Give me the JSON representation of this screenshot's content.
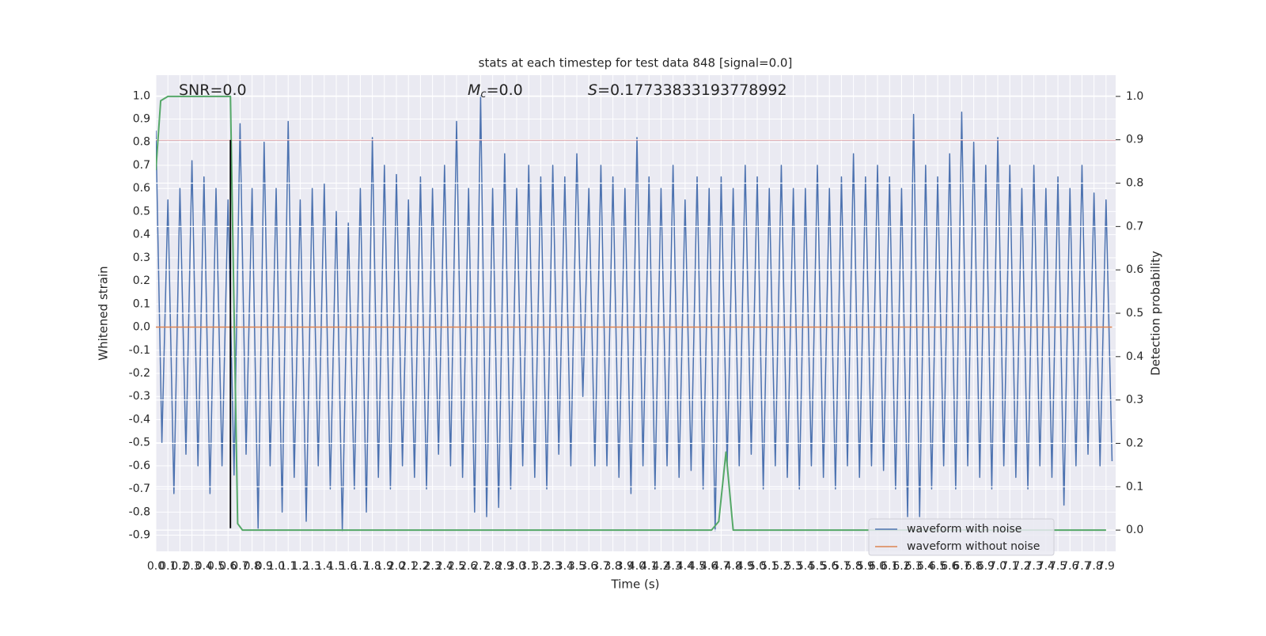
{
  "chart_data": {
    "type": "line",
    "title": "stats at each timestep for test data 848 [signal=0.0]",
    "xlabel": "Time (s)",
    "ylabel": "Whitened strain",
    "y2label": "Detection probability",
    "annotations": [
      {
        "text": "SNR=0.0"
      },
      {
        "symbol": "M",
        "subscript": "c",
        "text": "=0.0"
      },
      {
        "symbol": "S",
        "text": "=0.17733833193778992"
      }
    ],
    "xlim": [
      0,
      7.98
    ],
    "ylim": [
      -0.97,
      1.09
    ],
    "y2lim": [
      -0.049,
      1.049
    ],
    "xticks": [
      {
        "value": 0,
        "label": "0.0"
      },
      0.1,
      0.2,
      0.3,
      0.4,
      0.5,
      0.6,
      0.7,
      0.8,
      0.9,
      {
        "value": 1,
        "label": "1.0"
      },
      1.1,
      1.2,
      1.3,
      1.4,
      1.5,
      1.6,
      1.7,
      1.8,
      1.9,
      {
        "value": 2,
        "label": "2.0"
      },
      2.1,
      2.2,
      2.3,
      2.4,
      2.5,
      2.6,
      2.7,
      2.8,
      2.9,
      {
        "value": 3,
        "label": "3.0"
      },
      3.1,
      3.2,
      3.3,
      3.4,
      3.5,
      3.6,
      3.7,
      3.8,
      3.9,
      {
        "value": 4,
        "label": "4.0"
      },
      4.1,
      4.2,
      4.3,
      4.4,
      4.5,
      4.6,
      4.7,
      4.8,
      4.9,
      {
        "value": 5,
        "label": "5.0"
      },
      5.1,
      5.2,
      5.3,
      5.4,
      5.5,
      5.6,
      5.7,
      5.8,
      5.9,
      {
        "value": 6,
        "label": "6.0"
      },
      6.1,
      6.2,
      6.3,
      6.4,
      6.5,
      6.6,
      6.7,
      6.8,
      6.9,
      {
        "value": 7,
        "label": "7.0"
      },
      7.1,
      7.2,
      7.3,
      7.4,
      7.5,
      7.6,
      7.7,
      7.8,
      7.9
    ],
    "yticks": [
      -0.9,
      -0.8,
      -0.7,
      -0.6,
      -0.5,
      -0.4,
      -0.3,
      -0.2,
      -0.1,
      {
        "value": 0,
        "label": "0.0"
      },
      0.1,
      0.2,
      0.3,
      0.4,
      0.5,
      0.6,
      0.7,
      0.8,
      0.9,
      {
        "value": 1,
        "label": "1.0"
      }
    ],
    "y2ticks": [
      {
        "value": 0,
        "label": "0.0"
      },
      0.1,
      0.2,
      0.3,
      0.4,
      0.5,
      0.6,
      0.7,
      0.8,
      0.9,
      {
        "value": 1,
        "label": "1.0"
      }
    ],
    "grid": true,
    "legend": "lower right",
    "threshold": 0.81,
    "threshold_color": "#c44e52",
    "vline": {
      "x": 0.62,
      "ymin": -0.87,
      "ymax": 0.81,
      "color": "#000000"
    },
    "series": [
      {
        "name": "waveform with noise",
        "color": "#4c72b0",
        "x": [
          0,
          0.05,
          0.1,
          0.15,
          0.2,
          0.25,
          0.3,
          0.35,
          0.4,
          0.45,
          0.5,
          0.55,
          0.6,
          0.65,
          0.7,
          0.75,
          0.8,
          0.85,
          0.9,
          0.95,
          1,
          1.05,
          1.1,
          1.15,
          1.2,
          1.25,
          1.3,
          1.35,
          1.4,
          1.45,
          1.5,
          1.55,
          1.6,
          1.65,
          1.7,
          1.75,
          1.8,
          1.85,
          1.9,
          1.95,
          2,
          2.05,
          2.1,
          2.15,
          2.2,
          2.25,
          2.3,
          2.35,
          2.4,
          2.45,
          2.5,
          2.55,
          2.6,
          2.65,
          2.7,
          2.75,
          2.8,
          2.85,
          2.9,
          2.95,
          3,
          3.05,
          3.1,
          3.15,
          3.2,
          3.25,
          3.3,
          3.35,
          3.4,
          3.45,
          3.5,
          3.55,
          3.6,
          3.65,
          3.7,
          3.75,
          3.8,
          3.85,
          3.9,
          3.95,
          4,
          4.05,
          4.1,
          4.15,
          4.2,
          4.25,
          4.3,
          4.35,
          4.4,
          4.45,
          4.5,
          4.55,
          4.6,
          4.65,
          4.7,
          4.75,
          4.8,
          4.85,
          4.9,
          4.95,
          5,
          5.05,
          5.1,
          5.15,
          5.2,
          5.25,
          5.3,
          5.35,
          5.4,
          5.45,
          5.5,
          5.55,
          5.6,
          5.65,
          5.7,
          5.75,
          5.8,
          5.85,
          5.9,
          5.95,
          6,
          6.05,
          6.1,
          6.15,
          6.2,
          6.25,
          6.3,
          6.35,
          6.4,
          6.45,
          6.5,
          6.55,
          6.6,
          6.65,
          6.7,
          6.75,
          6.8,
          6.85,
          6.9,
          6.95,
          7,
          7.05,
          7.1,
          7.15,
          7.2,
          7.25,
          7.3,
          7.35,
          7.4,
          7.45,
          7.5,
          7.55,
          7.6,
          7.65,
          7.7,
          7.75,
          7.8,
          7.85,
          7.9,
          7.95
        ],
        "values": [
          0.85,
          -0.5,
          0.55,
          -0.72,
          0.6,
          -0.55,
          0.72,
          -0.6,
          0.65,
          -0.72,
          0.6,
          -0.6,
          0.55,
          -0.64,
          0.88,
          -0.55,
          0.6,
          -0.87,
          0.8,
          -0.6,
          0.6,
          -0.8,
          0.89,
          -0.65,
          0.55,
          -0.84,
          0.6,
          -0.6,
          0.62,
          -0.7,
          0.5,
          -0.88,
          0.45,
          -0.7,
          0.6,
          -0.8,
          0.82,
          -0.65,
          0.7,
          -0.7,
          0.66,
          -0.6,
          0.55,
          -0.65,
          0.65,
          -0.7,
          0.6,
          -0.55,
          0.7,
          -0.6,
          0.89,
          -0.65,
          0.6,
          -0.8,
          1.0,
          -0.82,
          0.6,
          -0.78,
          0.75,
          -0.7,
          0.6,
          -0.6,
          0.7,
          -0.65,
          0.65,
          -0.7,
          0.7,
          -0.55,
          0.65,
          -0.6,
          0.75,
          -0.3,
          0.6,
          -0.6,
          0.7,
          -0.6,
          0.65,
          -0.65,
          0.6,
          -0.72,
          0.82,
          -0.6,
          0.65,
          -0.7,
          0.6,
          -0.6,
          0.7,
          -0.65,
          0.55,
          -0.62,
          0.65,
          -0.7,
          0.6,
          -0.88,
          0.65,
          -0.6,
          0.6,
          -0.6,
          0.7,
          -0.55,
          0.65,
          -0.7,
          0.6,
          -0.6,
          0.7,
          -0.65,
          0.6,
          -0.7,
          0.6,
          -0.6,
          0.7,
          -0.65,
          0.6,
          -0.7,
          0.65,
          -0.6,
          0.75,
          -0.65,
          0.65,
          -0.6,
          0.7,
          -0.62,
          0.65,
          -0.7,
          0.6,
          -0.82,
          0.92,
          -0.82,
          0.7,
          -0.7,
          0.65,
          -0.6,
          0.75,
          -0.7,
          0.93,
          -0.6,
          0.8,
          -0.65,
          0.7,
          -0.7,
          0.82,
          -0.6,
          0.7,
          -0.65,
          0.6,
          -0.7,
          0.7,
          -0.6,
          0.6,
          -0.65,
          0.65,
          -0.77,
          0.6,
          -0.6,
          0.7,
          -0.55,
          0.58,
          -0.6,
          0.55,
          -0.58
        ]
      },
      {
        "name": "waveform without noise",
        "color": "#dd8452",
        "x": [
          0,
          7.95
        ],
        "values": [
          0,
          0
        ]
      },
      {
        "color": "#55a868",
        "axis": "y2",
        "x": [
          0,
          0.04,
          0.1,
          0.62,
          0.68,
          0.72,
          4.62,
          4.68,
          4.74,
          4.8,
          7.9
        ],
        "values": [
          0.83,
          0.99,
          1.0,
          1.0,
          0.015,
          0,
          0,
          0.02,
          0.18,
          0,
          0
        ]
      }
    ]
  }
}
